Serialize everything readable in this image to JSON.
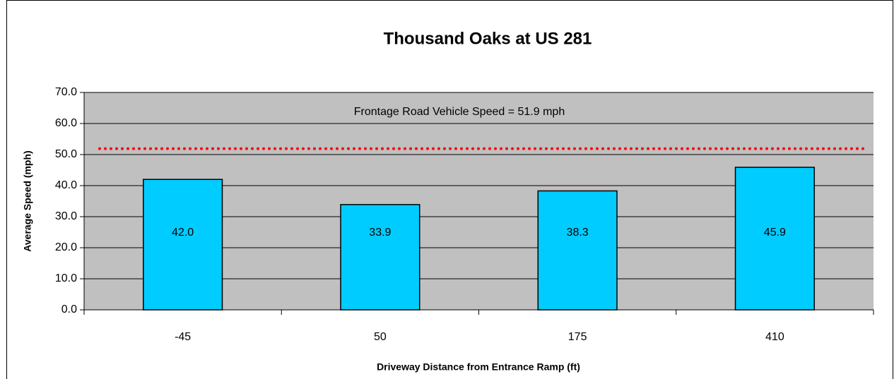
{
  "chart_data": {
    "type": "bar",
    "title": "Thousand Oaks at US 281",
    "x_label": "Driveway Distance from Entrance Ramp (ft)",
    "y_label": "Average Speed (mph)",
    "categories": [
      "-45",
      "50",
      "175",
      "410"
    ],
    "values": [
      42.0,
      33.9,
      38.3,
      45.9
    ],
    "value_labels": [
      "42.0",
      "33.9",
      "38.3",
      "45.9"
    ],
    "color": "#00ccff",
    "background": "#c0c0c0",
    "ylim": [
      0,
      70
    ],
    "yticks": [
      {
        "value": 0,
        "label": "0.0"
      },
      {
        "value": 10,
        "label": "10.0"
      },
      {
        "value": 20,
        "label": "20.0"
      },
      {
        "value": 30,
        "label": "30.0"
      },
      {
        "value": 40,
        "label": "40.0"
      },
      {
        "value": 50,
        "label": "50.0"
      },
      {
        "value": 60,
        "label": "60.0"
      },
      {
        "value": 70,
        "label": "70.0"
      }
    ],
    "grid": true,
    "reference_line": {
      "value": 51.9,
      "label": "Frontage Road Vehicle Speed = 51.9 mph",
      "color": "#ff0000"
    }
  }
}
